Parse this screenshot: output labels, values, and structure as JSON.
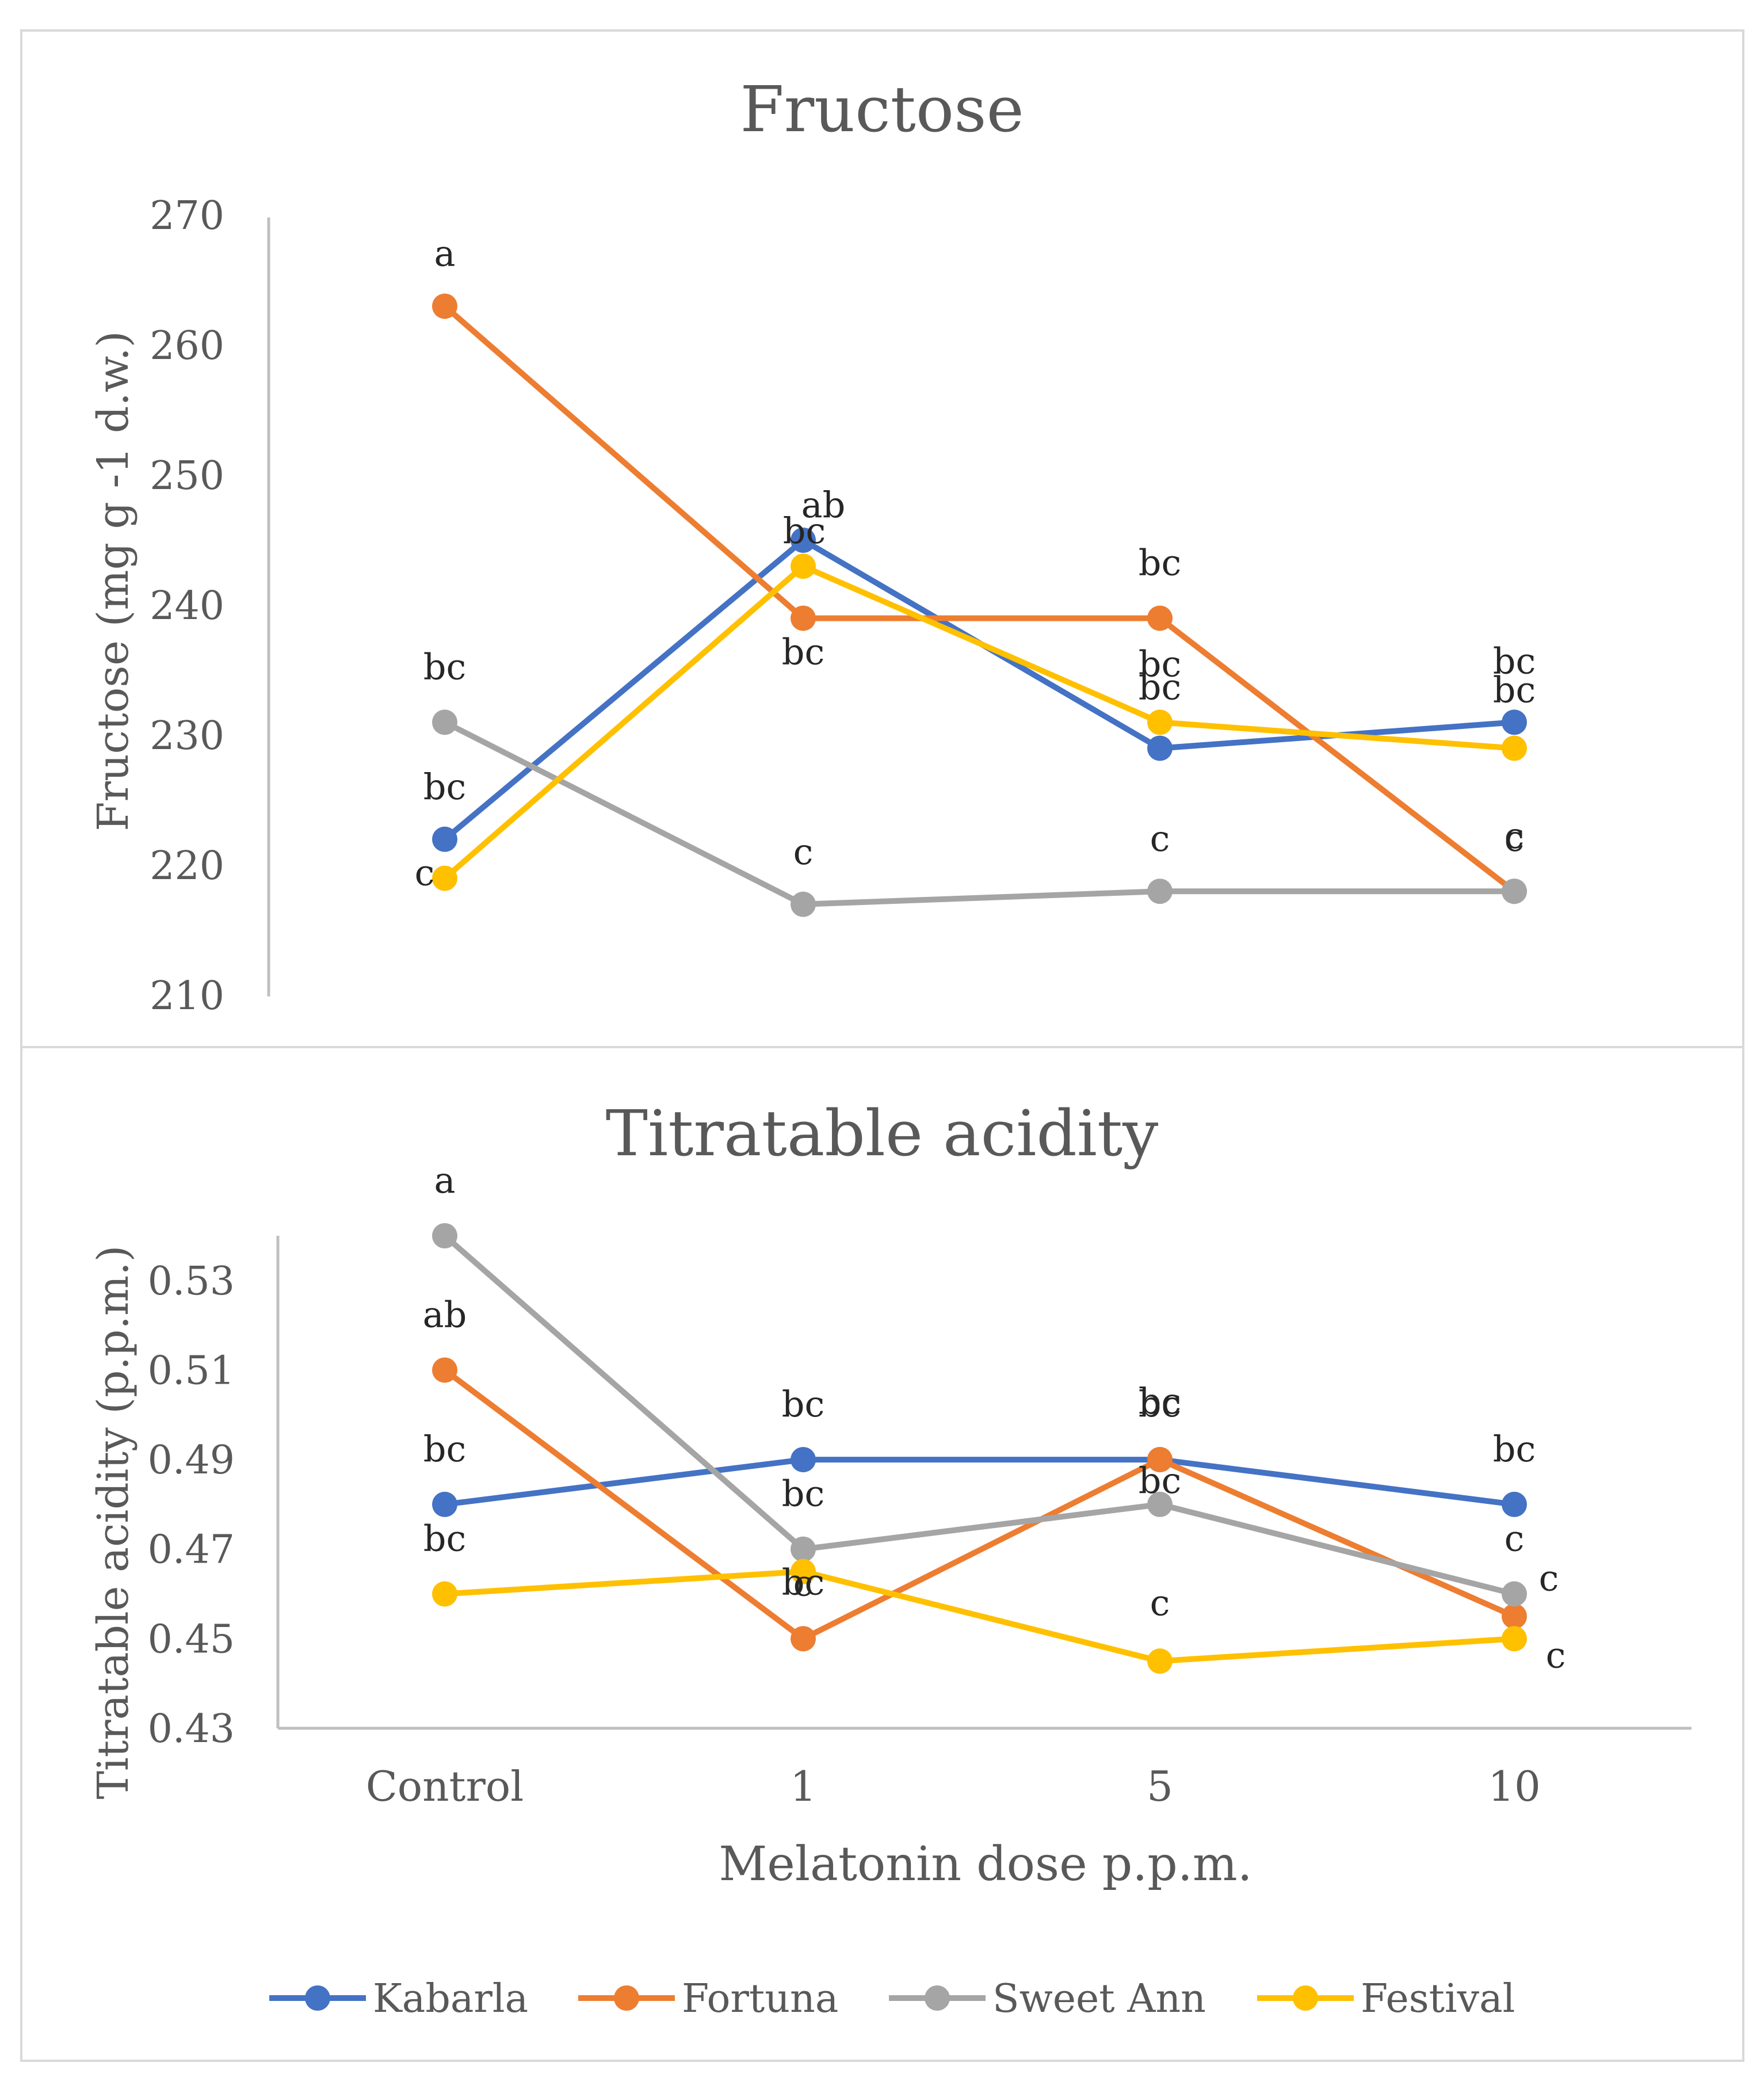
{
  "colors": {
    "Kabarla": "#4472c4",
    "Fortuna": "#ed7d31",
    "Sweet Ann": "#a5a5a5",
    "Festival": "#ffc000",
    "axis": "#bfbfbf",
    "text": "#595959",
    "border": "#d9d9d9"
  },
  "legend": {
    "position": "bottom",
    "items": [
      "Kabarla",
      "Fortuna",
      "Sweet Ann",
      "Festival"
    ]
  },
  "chart_data": [
    {
      "type": "line",
      "title": "Fructose",
      "ylabel": "Fructose (mg g -1 d.w.)",
      "xlabel": "",
      "categories": [
        "Control",
        "1",
        "5",
        "10"
      ],
      "ylim": [
        210,
        270
      ],
      "yticks": [
        "210",
        "220",
        "230",
        "240",
        "250",
        "260",
        "270"
      ],
      "grid": false,
      "series": [
        {
          "name": "Kabarla",
          "values": [
            222,
            245,
            229,
            231
          ],
          "letters": [
            "bc",
            "ab",
            "bc",
            "bc"
          ]
        },
        {
          "name": "Fortuna",
          "values": [
            263,
            239,
            239,
            218
          ],
          "letters": [
            "a",
            "bc",
            "bc",
            "c"
          ]
        },
        {
          "name": "Sweet Ann",
          "values": [
            231,
            217,
            218,
            218
          ],
          "letters": [
            "bc",
            "c",
            "c",
            "c"
          ]
        },
        {
          "name": "Festival",
          "values": [
            219,
            243,
            231,
            229
          ],
          "letters": [
            "c",
            "bc",
            "bc",
            "bc"
          ]
        }
      ]
    },
    {
      "type": "line",
      "title": "Titratable acidity",
      "ylabel": "Titratable acidity (p.p.m.)",
      "xlabel": "Melatonin dose p.p.m.",
      "categories": [
        "Control",
        "1",
        "5",
        "10"
      ],
      "ylim": [
        0.43,
        0.54
      ],
      "yticks": [
        "0.43",
        "0.45",
        "0.47",
        "0.49",
        "0.51",
        "0.53"
      ],
      "grid": false,
      "series": [
        {
          "name": "Kabarla",
          "values": [
            0.48,
            0.49,
            0.49,
            0.48
          ],
          "letters": [
            "bc",
            "bc",
            "bc",
            "bc"
          ]
        },
        {
          "name": "Fortuna",
          "values": [
            0.51,
            0.45,
            0.49,
            0.455
          ],
          "letters": [
            "ab",
            "c",
            "bc",
            "c"
          ]
        },
        {
          "name": "Sweet Ann",
          "values": [
            0.54,
            0.47,
            0.48,
            0.46
          ],
          "letters": [
            "a",
            "bc",
            "bc",
            "c"
          ]
        },
        {
          "name": "Festival",
          "values": [
            0.46,
            0.465,
            0.445,
            0.45
          ],
          "letters": [
            "bc",
            "bc",
            "c",
            "c"
          ]
        }
      ]
    }
  ]
}
